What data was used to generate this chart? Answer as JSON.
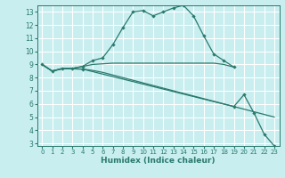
{
  "xlabel": "Humidex (Indice chaleur)",
  "bg_color": "#c8eef0",
  "grid_color": "#ffffff",
  "line_color": "#2a7a6e",
  "xlim": [
    -0.5,
    23.5
  ],
  "ylim": [
    2.8,
    13.5
  ],
  "xticks": [
    0,
    1,
    2,
    3,
    4,
    5,
    6,
    7,
    8,
    9,
    10,
    11,
    12,
    13,
    14,
    15,
    16,
    17,
    18,
    19,
    20,
    21,
    22,
    23
  ],
  "yticks": [
    3,
    4,
    5,
    6,
    7,
    8,
    9,
    10,
    11,
    12,
    13
  ],
  "line1_x": [
    0,
    1,
    2,
    3,
    4,
    5,
    6,
    7,
    8,
    9,
    10,
    11,
    12,
    13,
    14,
    15,
    16,
    17,
    18,
    19
  ],
  "line1_y": [
    9.0,
    8.5,
    8.7,
    8.7,
    8.85,
    9.3,
    9.5,
    10.5,
    11.8,
    13.0,
    13.1,
    12.7,
    13.0,
    13.3,
    13.5,
    12.7,
    11.2,
    9.8,
    9.3,
    8.8
  ],
  "line2_x": [
    0,
    1,
    2,
    3,
    4,
    5,
    6,
    7,
    8,
    9,
    10,
    11,
    12,
    13,
    14,
    15,
    16,
    17,
    18,
    19
  ],
  "line2_y": [
    9.0,
    8.5,
    8.7,
    8.7,
    8.85,
    9.0,
    9.05,
    9.1,
    9.1,
    9.1,
    9.1,
    9.1,
    9.1,
    9.1,
    9.1,
    9.1,
    9.1,
    9.1,
    9.0,
    8.8
  ],
  "line3_x": [
    0,
    1,
    2,
    3,
    4,
    5,
    6,
    7,
    8,
    9,
    10,
    11,
    12,
    13,
    14,
    15,
    16,
    17,
    18,
    19,
    20,
    21,
    22,
    23
  ],
  "line3_y": [
    9.0,
    8.5,
    8.67,
    8.67,
    8.65,
    8.55,
    8.4,
    8.2,
    8.0,
    7.8,
    7.6,
    7.4,
    7.2,
    7.0,
    6.8,
    6.6,
    6.4,
    6.2,
    6.0,
    5.8,
    5.6,
    5.4,
    5.2,
    5.0
  ],
  "line4_x": [
    0,
    1,
    2,
    3,
    4,
    19,
    20,
    21,
    22,
    23
  ],
  "line4_y": [
    9.0,
    8.5,
    8.67,
    8.67,
    8.65,
    5.8,
    6.7,
    5.3,
    3.7,
    2.8
  ],
  "tick_color": "#2a7a6e",
  "tick_fontsize": 5.0,
  "xlabel_fontsize": 6.5
}
